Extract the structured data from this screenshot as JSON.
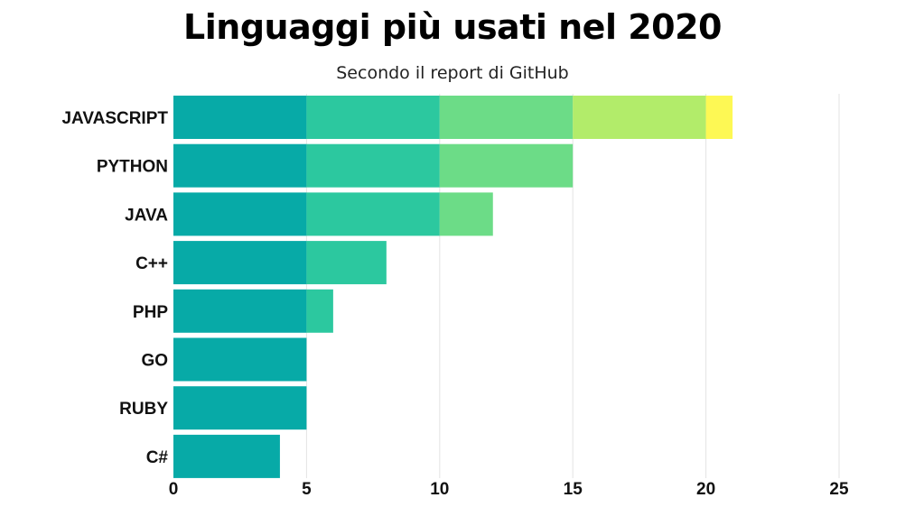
{
  "chart_data": {
    "type": "bar",
    "orientation": "horizontal",
    "stacked": true,
    "title": "Linguaggi più usati nel 2020",
    "subtitle": "Secondo il report di GitHub",
    "categories": [
      "JAVASCRIPT",
      "PYTHON",
      "JAVA",
      "C++",
      "PHP",
      "GO",
      "RUBY",
      "C#"
    ],
    "values": [
      21,
      15,
      12,
      8,
      6,
      5,
      5,
      4
    ],
    "segment_size": 5,
    "segment_colors": [
      "#07aaa7",
      "#2cc89f",
      "#6cdc87",
      "#b2ec6a",
      "#fdf854"
    ],
    "xlim": [
      0,
      25
    ],
    "xticks": [
      "0",
      "5",
      "10",
      "15",
      "20",
      "25"
    ],
    "xlabel": "",
    "ylabel": "",
    "grid": "vertical",
    "grid_color": "#e3e3e3"
  }
}
